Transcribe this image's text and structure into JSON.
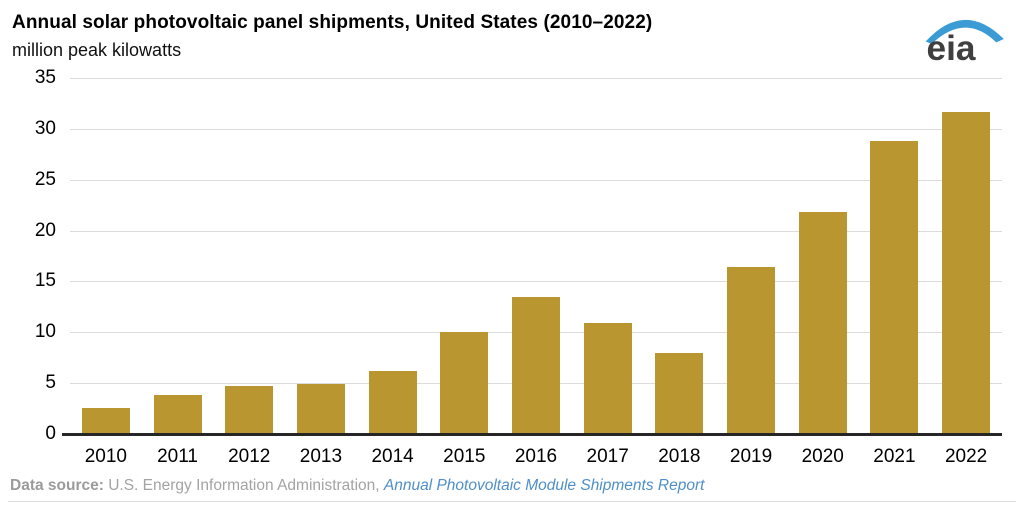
{
  "header": {
    "title": "Annual solar photovoltaic panel shipments, United States (2010–2022)",
    "subtitle": "million peak kilowatts",
    "logo_text": "eia",
    "logo_swoosh_color": "#3a9bd5",
    "logo_text_color": "#3f3f3f"
  },
  "chart_data": {
    "type": "bar",
    "title": "Annual solar photovoltaic panel shipments, United States (2010–2022)",
    "xlabel": "",
    "ylabel": "million peak kilowatts",
    "categories": [
      "2010",
      "2011",
      "2012",
      "2013",
      "2014",
      "2015",
      "2016",
      "2017",
      "2018",
      "2019",
      "2020",
      "2021",
      "2022"
    ],
    "values": [
      2.6,
      3.8,
      4.7,
      4.9,
      6.2,
      10.0,
      13.5,
      10.9,
      8.0,
      16.4,
      21.8,
      28.8,
      31.7
    ],
    "ylim": [
      0,
      35
    ],
    "yticks": [
      0,
      5,
      10,
      15,
      20,
      25,
      30,
      35
    ],
    "grid": true,
    "legend_position": "none",
    "bar_color": "#b9962f",
    "gridline_color": "#dcdcdc",
    "axis_color": "#262626"
  },
  "footer": {
    "source_label": "Data source:",
    "source_text": " U.S. Energy Information Administration, ",
    "link_text": "Annual Photovoltaic Module Shipments Report"
  }
}
